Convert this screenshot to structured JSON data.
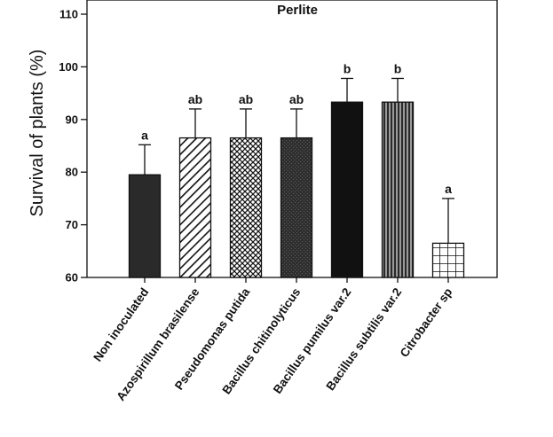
{
  "chart_data": {
    "type": "bar",
    "title": "Perlite",
    "xlabel": "",
    "ylabel": "Survival of plants (%)",
    "ylim": [
      60,
      110
    ],
    "yticks": [
      60,
      70,
      80,
      90,
      100,
      110
    ],
    "grid": false,
    "categories": [
      "Non inoculated",
      "Azospirillum brasilense",
      "Pseudomonas putida",
      "Bacillus chitinolyticus",
      "Bacillus pumilus var.2",
      "Bacillus subtilis var.2",
      "Citrobacter sp"
    ],
    "values": [
      79.5,
      86.5,
      86.5,
      86.5,
      93.3,
      93.3,
      66.5
    ],
    "error_upper": [
      85.2,
      92.0,
      92.0,
      92.0,
      97.8,
      97.8,
      75.0
    ],
    "significance_letters": [
      "a",
      "ab",
      "ab",
      "ab",
      "b",
      "b",
      "a"
    ],
    "fills": [
      {
        "pattern": "solid-dark",
        "color": "#2a2a2a"
      },
      {
        "pattern": "diagonal-hatch",
        "color": "#222222"
      },
      {
        "pattern": "cross-hatch",
        "color": "#222222"
      },
      {
        "pattern": "solid-dark-texture",
        "color": "#3a3a3a"
      },
      {
        "pattern": "solid-black",
        "color": "#111111"
      },
      {
        "pattern": "vertical-stripes",
        "color": "#444444"
      },
      {
        "pattern": "square-grid",
        "color": "#222222"
      }
    ]
  }
}
